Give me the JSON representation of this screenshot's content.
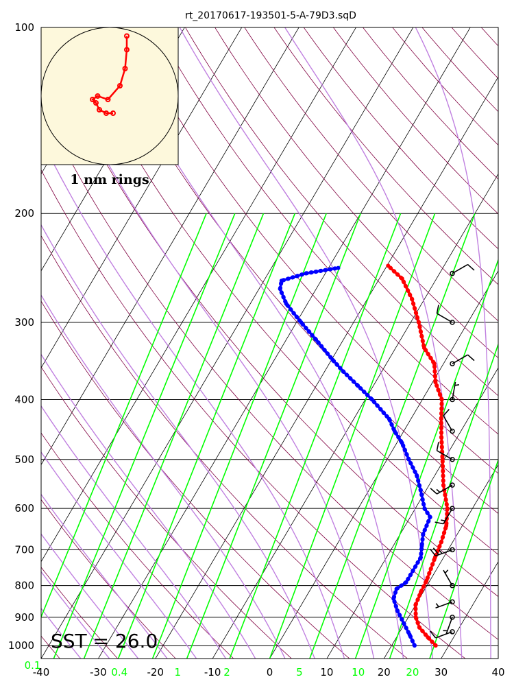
{
  "chart_data": {
    "type": "line",
    "title": "rt_20170617-193501-5-A-79D3.sqD",
    "annotation": "SST = 26.0",
    "hodograph_label": "1 nm rings",
    "colors": {
      "temperature": "#ff0000",
      "dewpoint": "#0000ff",
      "mixing_ratio": "#00ff00",
      "moist_adiabat": "#c080e0",
      "dry_adiabat": "#800040",
      "isotherm": "#000000",
      "hodo_bg": "#fdf8dc"
    },
    "x_axis": {
      "range": [
        -40,
        40
      ],
      "ticks": [
        "-40",
        "-30",
        "-20",
        "-10",
        "0",
        "10",
        "20",
        "30",
        "40"
      ]
    },
    "y_axis": {
      "range": [
        1050,
        100
      ],
      "scale": "log",
      "ticks": [
        "100",
        "200",
        "300",
        "400",
        "500",
        "600",
        "700",
        "800",
        "900",
        "1000"
      ]
    },
    "mixing_ratio_labels": [
      {
        "text": "0.1",
        "temp_at_1050": -41.5
      },
      {
        "text": "0.4",
        "temp_at_1050": -26.3
      },
      {
        "text": "1",
        "temp_at_1050": -16.1
      },
      {
        "text": "2",
        "temp_at_1050": -7.5
      },
      {
        "text": "5",
        "temp_at_1050": 5.2
      },
      {
        "text": "10",
        "temp_at_1050": 15.5
      },
      {
        "text": "20",
        "temp_at_1050": 25.0
      }
    ],
    "mixing_ratio_lines": [
      {
        "t1050": -43.0,
        "t200": -57.0
      },
      {
        "t1050": -37.8,
        "t200": -52.0
      },
      {
        "t1050": -32.5,
        "t200": -47.0
      },
      {
        "t1050": -26.5,
        "t200": -41.5
      },
      {
        "t1050": -20.5,
        "t200": -36.0
      },
      {
        "t1050": -14.5,
        "t200": -30.0
      },
      {
        "t1050": -7.0,
        "t200": -23.0
      },
      {
        "t1050": 0.0,
        "t200": -17.0
      },
      {
        "t1050": 7.0,
        "t200": -10.0
      },
      {
        "t1050": 15.0,
        "t200": -3.0
      },
      {
        "t1050": 21.0,
        "t200": 2.0
      },
      {
        "t1050": 28.0,
        "t200": 9.0
      }
    ],
    "series": [
      {
        "name": "Temperature",
        "points": [
          [
            27.7,
            1000
          ],
          [
            25.5,
            970
          ],
          [
            23.0,
            935
          ],
          [
            21.3,
            900
          ],
          [
            20.0,
            860
          ],
          [
            19.6,
            820
          ],
          [
            19.4,
            785
          ],
          [
            18.5,
            720
          ],
          [
            18.0,
            680
          ],
          [
            17.2,
            640
          ],
          [
            15.6,
            600
          ],
          [
            12.5,
            550
          ],
          [
            9.7,
            500
          ],
          [
            7.2,
            460
          ],
          [
            5.3,
            430
          ],
          [
            3.4,
            400
          ],
          [
            0.5,
            375
          ],
          [
            -1.6,
            350
          ],
          [
            -5.0,
            330
          ],
          [
            -8.6,
            300
          ],
          [
            -12.2,
            275
          ],
          [
            -16.0,
            255
          ],
          [
            -19.8,
            243
          ]
        ]
      },
      {
        "name": "Dewpoint",
        "points": [
          [
            24.0,
            1000
          ],
          [
            22.0,
            960
          ],
          [
            19.8,
            920
          ],
          [
            17.5,
            880
          ],
          [
            15.5,
            840
          ],
          [
            15.0,
            810
          ],
          [
            16.0,
            790
          ],
          [
            16.0,
            720
          ],
          [
            15.0,
            690
          ],
          [
            14.0,
            660
          ],
          [
            13.5,
            620
          ],
          [
            11.6,
            600
          ],
          [
            9.0,
            560
          ],
          [
            6.8,
            530
          ],
          [
            3.8,
            500
          ],
          [
            0.9,
            470
          ],
          [
            -1.6,
            450
          ],
          [
            -3.8,
            430
          ],
          [
            -8.8,
            400
          ],
          [
            -12.7,
            380
          ],
          [
            -16.8,
            360
          ],
          [
            -19.8,
            345
          ],
          [
            -24.8,
            320
          ],
          [
            -29.2,
            300
          ],
          [
            -33.7,
            280
          ],
          [
            -36.3,
            265
          ],
          [
            -36.9,
            257
          ],
          [
            -33.4,
            250
          ],
          [
            -28.3,
            245
          ]
        ]
      }
    ],
    "wind_barbs": [
      {
        "p": 250,
        "dir": 60,
        "kt": 10
      },
      {
        "p": 300,
        "dir": 300,
        "kt": 10
      },
      {
        "p": 350,
        "dir": 60,
        "kt": 10
      },
      {
        "p": 400,
        "dir": 10,
        "kt": 5
      },
      {
        "p": 450,
        "dir": 330,
        "kt": 10
      },
      {
        "p": 500,
        "dir": 300,
        "kt": 10
      },
      {
        "p": 550,
        "dir": 240,
        "kt": 15
      },
      {
        "p": 600,
        "dir": 210,
        "kt": 15
      },
      {
        "p": 700,
        "dir": 250,
        "kt": 25
      },
      {
        "p": 800,
        "dir": 330,
        "kt": 5
      },
      {
        "p": 850,
        "dir": 250,
        "kt": 5
      },
      {
        "p": 900,
        "dir": 200,
        "kt": 5
      },
      {
        "p": 950,
        "dir": 250,
        "kt": 10
      }
    ],
    "hodograph": {
      "points": [
        [
          0.1,
          0.5
        ],
        [
          -0.1,
          0.5
        ],
        [
          -0.3,
          0.4
        ],
        [
          -0.4,
          0.2
        ],
        [
          -0.5,
          0.1
        ],
        [
          -0.35,
          0.0
        ],
        [
          -0.05,
          0.1
        ],
        [
          0.3,
          -0.3
        ],
        [
          0.45,
          -0.8
        ],
        [
          0.5,
          -1.35
        ],
        [
          0.5,
          -1.75
        ]
      ]
    }
  }
}
